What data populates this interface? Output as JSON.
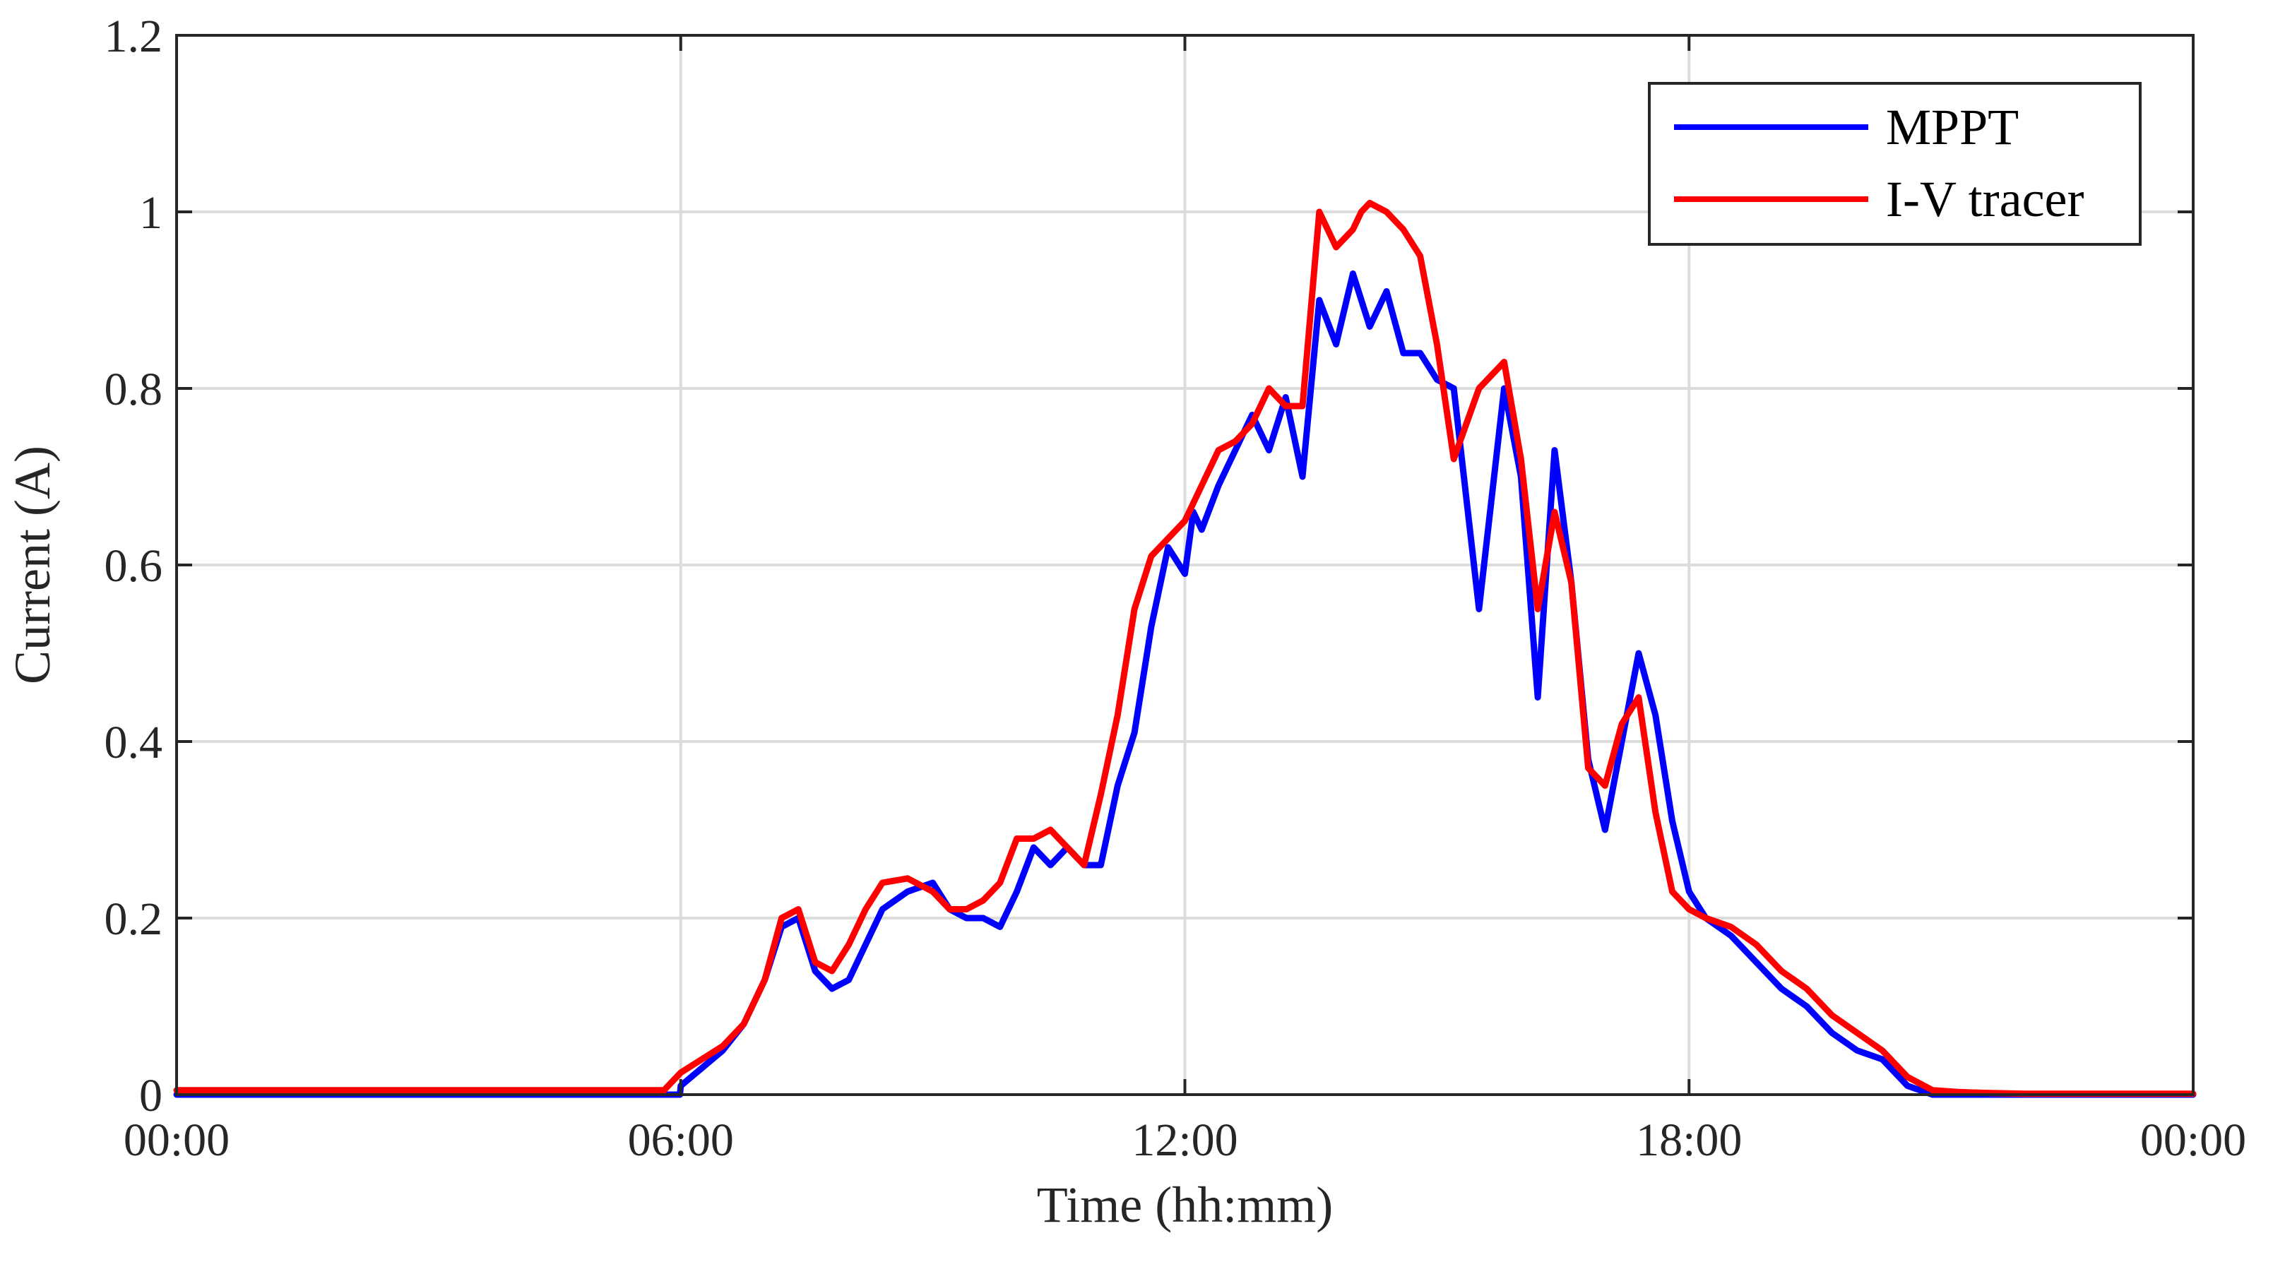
{
  "chart_data": {
    "type": "line",
    "title": "",
    "xlabel": "Time (hh:mm)",
    "ylabel": "Current (A)",
    "xlim": [
      "00:00",
      "24:00"
    ],
    "ylim": [
      0,
      1.2
    ],
    "xtick_labels": [
      "00:00",
      "06:00",
      "12:00",
      "18:00",
      "00:00"
    ],
    "xtick_hours": [
      0,
      6,
      12,
      18,
      24
    ],
    "ytick_labels": [
      "0",
      "0.2",
      "0.4",
      "0.6",
      "0.8",
      "1",
      "1.2"
    ],
    "ytick_values": [
      0,
      0.2,
      0.4,
      0.6,
      0.8,
      1.0,
      1.2
    ],
    "grid": true,
    "legend_position": "top-right",
    "series": [
      {
        "name": "MPPT",
        "color": "#0000ff",
        "x_hours": [
          0,
          5.99,
          6.0,
          6.25,
          6.5,
          6.75,
          7.0,
          7.2,
          7.4,
          7.6,
          7.8,
          8.0,
          8.2,
          8.4,
          8.7,
          9.0,
          9.2,
          9.4,
          9.6,
          9.8,
          10.0,
          10.2,
          10.4,
          10.6,
          10.8,
          11.0,
          11.2,
          11.4,
          11.6,
          11.8,
          12.0,
          12.1,
          12.2,
          12.4,
          12.6,
          12.8,
          13.0,
          13.2,
          13.4,
          13.6,
          13.8,
          14.0,
          14.2,
          14.4,
          14.6,
          14.8,
          15.0,
          15.2,
          15.5,
          15.8,
          16.0,
          16.2,
          16.4,
          16.6,
          16.8,
          17.0,
          17.2,
          17.4,
          17.6,
          17.8,
          18.0,
          18.2,
          18.5,
          18.8,
          19.1,
          19.4,
          19.7,
          20.0,
          20.3,
          20.6,
          20.9,
          21.1,
          21.2,
          21.5,
          22.0,
          23.0,
          24.0
        ],
        "values": [
          0.0,
          0.0,
          0.01,
          0.03,
          0.05,
          0.08,
          0.13,
          0.19,
          0.2,
          0.14,
          0.12,
          0.13,
          0.17,
          0.21,
          0.23,
          0.24,
          0.21,
          0.2,
          0.2,
          0.19,
          0.23,
          0.28,
          0.26,
          0.28,
          0.26,
          0.26,
          0.35,
          0.41,
          0.53,
          0.62,
          0.59,
          0.66,
          0.64,
          0.69,
          0.73,
          0.77,
          0.73,
          0.79,
          0.7,
          0.9,
          0.85,
          0.93,
          0.87,
          0.91,
          0.84,
          0.84,
          0.81,
          0.8,
          0.55,
          0.8,
          0.7,
          0.45,
          0.73,
          0.58,
          0.38,
          0.3,
          0.4,
          0.5,
          0.43,
          0.31,
          0.23,
          0.2,
          0.18,
          0.15,
          0.12,
          0.1,
          0.07,
          0.05,
          0.04,
          0.01,
          0.0,
          0.0,
          0.0,
          0.0,
          0.0,
          0.0,
          0.0
        ]
      },
      {
        "name": "I-V tracer",
        "color": "#ff0000",
        "x_hours": [
          0,
          5.8,
          6.0,
          6.25,
          6.5,
          6.75,
          7.0,
          7.2,
          7.4,
          7.6,
          7.8,
          8.0,
          8.2,
          8.4,
          8.7,
          9.0,
          9.2,
          9.4,
          9.6,
          9.8,
          10.0,
          10.2,
          10.4,
          10.6,
          10.8,
          11.0,
          11.2,
          11.4,
          11.6,
          11.8,
          12.0,
          12.2,
          12.4,
          12.6,
          12.8,
          13.0,
          13.2,
          13.4,
          13.6,
          13.8,
          14.0,
          14.1,
          14.2,
          14.4,
          14.6,
          14.8,
          15.0,
          15.2,
          15.5,
          15.8,
          16.0,
          16.2,
          16.4,
          16.6,
          16.8,
          17.0,
          17.2,
          17.4,
          17.6,
          17.8,
          18.0,
          18.2,
          18.5,
          18.8,
          19.1,
          19.4,
          19.7,
          20.0,
          20.3,
          20.6,
          20.9,
          21.2,
          21.5,
          22.0,
          23.0,
          24.0
        ],
        "values": [
          0.005,
          0.005,
          0.025,
          0.04,
          0.055,
          0.08,
          0.13,
          0.2,
          0.21,
          0.15,
          0.14,
          0.17,
          0.21,
          0.24,
          0.245,
          0.23,
          0.21,
          0.21,
          0.22,
          0.24,
          0.29,
          0.29,
          0.3,
          0.28,
          0.26,
          0.34,
          0.43,
          0.55,
          0.61,
          0.63,
          0.65,
          0.69,
          0.73,
          0.74,
          0.76,
          0.8,
          0.78,
          0.78,
          1.0,
          0.96,
          0.98,
          1.0,
          1.01,
          1.0,
          0.98,
          0.95,
          0.85,
          0.72,
          0.8,
          0.83,
          0.72,
          0.55,
          0.66,
          0.58,
          0.37,
          0.35,
          0.42,
          0.45,
          0.32,
          0.23,
          0.21,
          0.2,
          0.19,
          0.17,
          0.14,
          0.12,
          0.09,
          0.07,
          0.05,
          0.02,
          0.005,
          0.003,
          0.002,
          0.001,
          0.001,
          0.001
        ]
      }
    ]
  }
}
